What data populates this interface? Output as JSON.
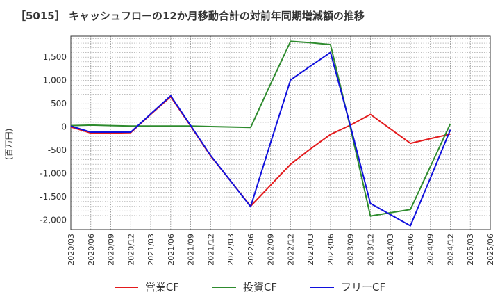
{
  "chart_data": {
    "type": "line",
    "title": "［5015］ キャッシュフローの12か月移動合計の対前年同期増減額の推移",
    "ylabel": "(百万円)",
    "xlabel": "",
    "ylim": [
      -2200,
      1950
    ],
    "yticks": [
      1500,
      1000,
      500,
      0,
      -500,
      -1000,
      -1500,
      -2000
    ],
    "ytick_labels": [
      "1,500",
      "1,000",
      "500",
      "0",
      "-500",
      "-1,000",
      "-1,500",
      "-2,000"
    ],
    "categories": [
      "2020/03",
      "2020/06",
      "2020/09",
      "2020/12",
      "2021/03",
      "2021/06",
      "2021/09",
      "2021/12",
      "2022/03",
      "2022/06",
      "2022/09",
      "2022/12",
      "2023/03",
      "2023/06",
      "2023/09",
      "2023/12",
      "2024/03",
      "2024/06",
      "2024/09",
      "2024/12",
      "2025/03",
      "2025/06"
    ],
    "grid": true,
    "legend_position": "bottom",
    "series": [
      {
        "name": "営業CF",
        "color": "#e31a1c",
        "values": [
          0,
          -130,
          -130,
          -120,
          270,
          650,
          20,
          -620,
          -1160,
          -1700,
          -1250,
          -800,
          -470,
          -160,
          40,
          270,
          -40,
          -350,
          -250,
          -150,
          null,
          null
        ]
      },
      {
        "name": "投資CF",
        "color": "#2e8b2e",
        "values": [
          30,
          40,
          30,
          20,
          20,
          20,
          20,
          10,
          0,
          -10,
          920,
          1840,
          1810,
          1770,
          -20,
          -1910,
          -1840,
          -1770,
          -850,
          70,
          null,
          null
        ]
      },
      {
        "name": "フリーCF",
        "color": "#1010dd",
        "values": [
          20,
          -110,
          -110,
          -110,
          280,
          670,
          30,
          -610,
          -1160,
          -1710,
          -340,
          1010,
          1310,
          1600,
          20,
          -1640,
          -1880,
          -2120,
          -1100,
          -60,
          null,
          null
        ]
      }
    ]
  }
}
